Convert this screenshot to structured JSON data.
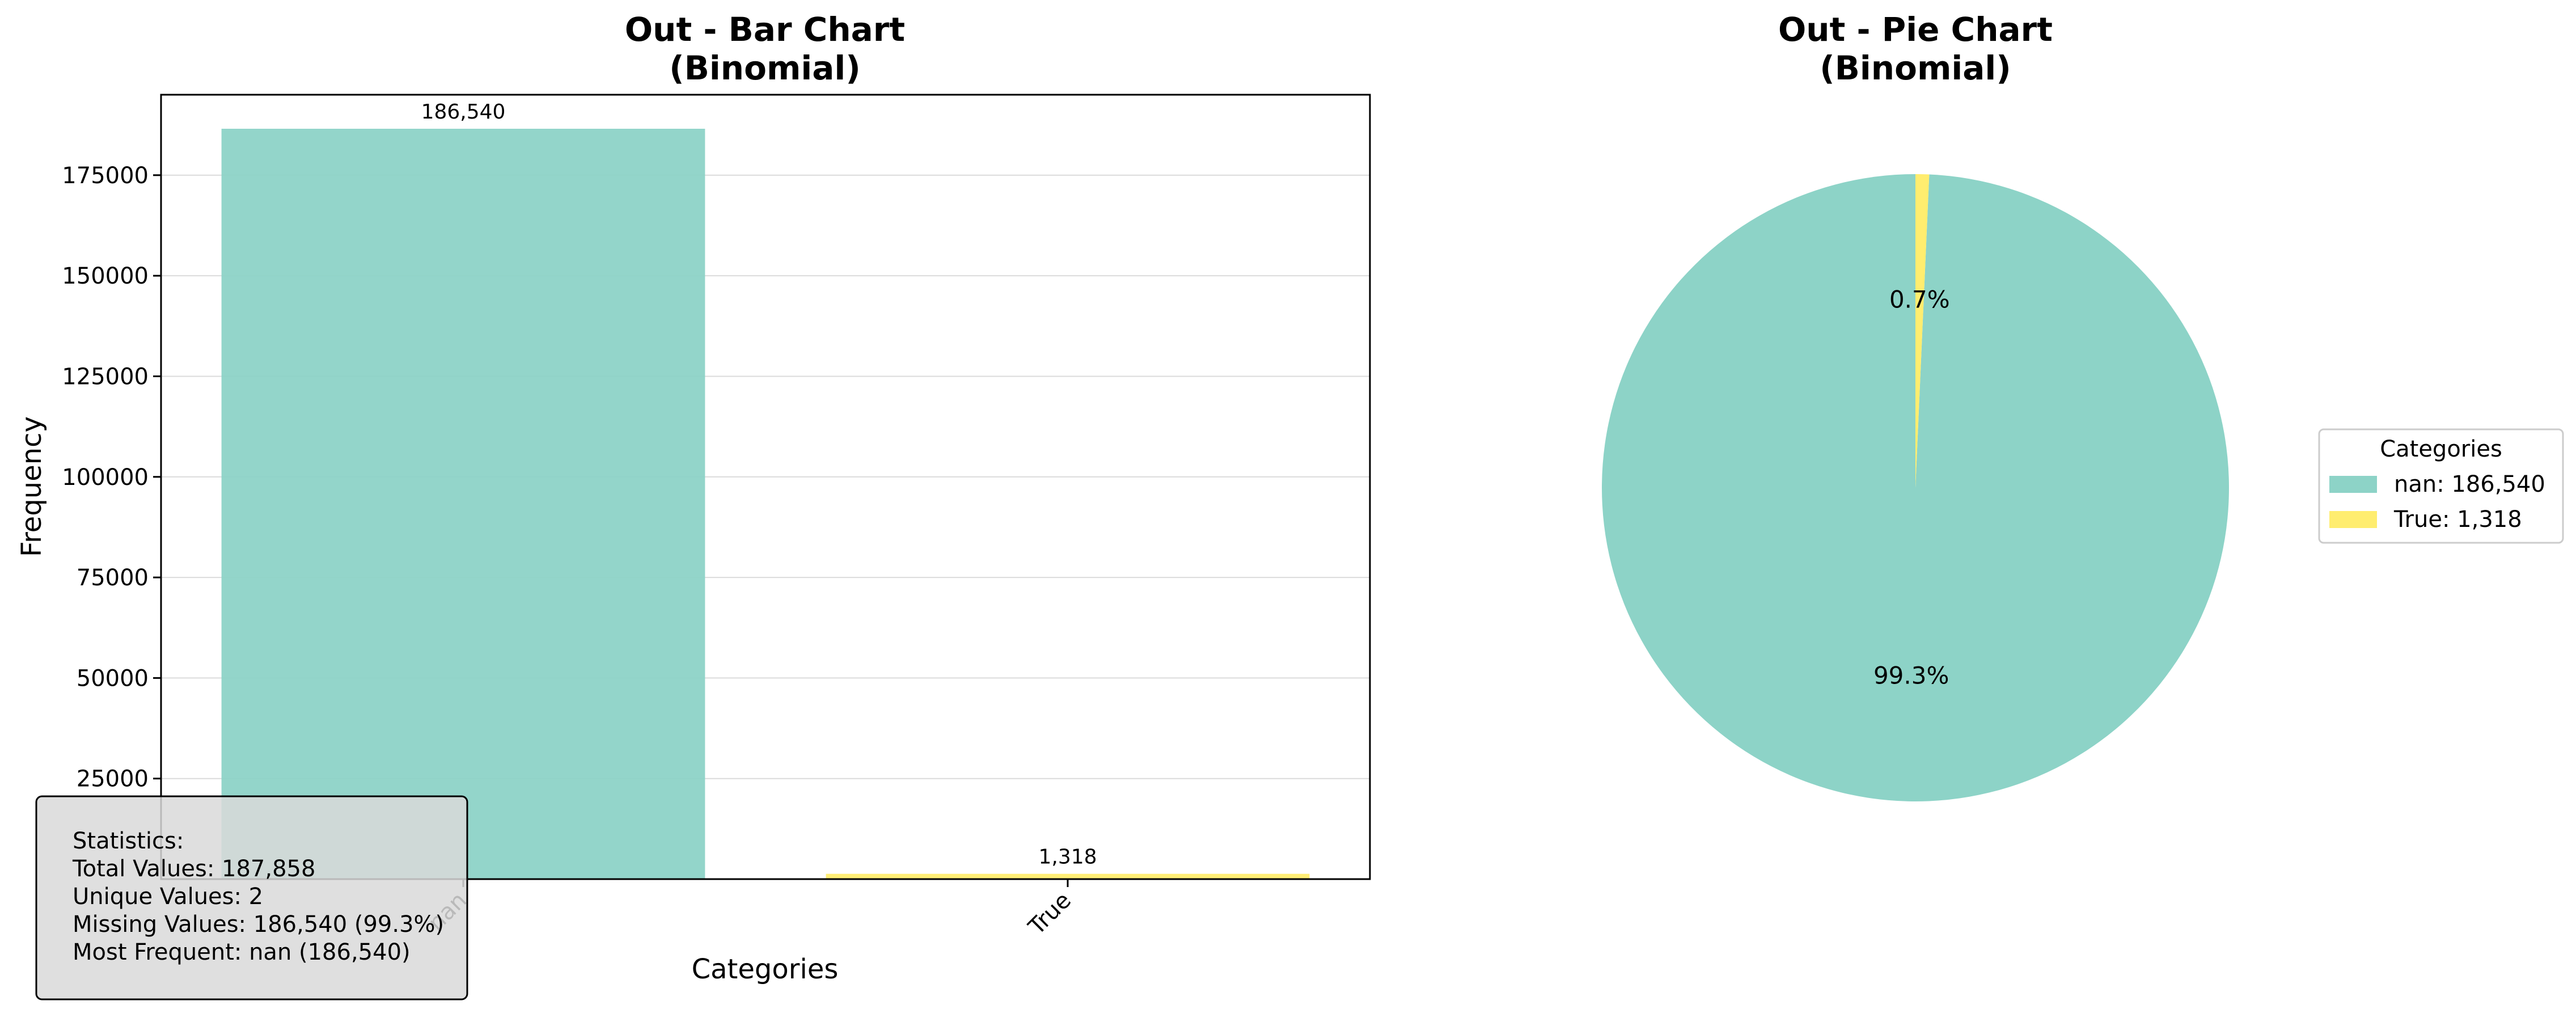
{
  "chart_data": [
    {
      "type": "bar",
      "title": [
        "Out - Bar Chart",
        "(Binomial)"
      ],
      "xlabel": "Categories",
      "ylabel": "Frequency",
      "categories": [
        "nan",
        "True"
      ],
      "values": [
        186540,
        1318
      ],
      "data_labels": [
        "186,540",
        "1,318"
      ],
      "colors": [
        "#8dd3c7",
        "#ffed6f"
      ],
      "ylim": [
        0,
        195000
      ],
      "yticks": [
        25000,
        50000,
        75000,
        100000,
        125000,
        150000,
        175000
      ],
      "ytick_labels": [
        "25000",
        "50000",
        "75000",
        "100000",
        "125000",
        "150000",
        "175000"
      ],
      "xtick_labels": [
        "nan",
        "True"
      ],
      "grid": "y",
      "stats_box": {
        "lines": [
          "Statistics:",
          "Total Values: 187,858",
          "Unique Values: 2",
          "Missing Values: 186,540 (99.3%)",
          "Most Frequent: nan (186,540)"
        ]
      }
    },
    {
      "type": "pie",
      "title": [
        "Out - Pie Chart",
        "(Binomial)"
      ],
      "labels": [
        "nan",
        "True"
      ],
      "values": [
        186540,
        1318
      ],
      "percent_labels": [
        "99.3%",
        "0.7%"
      ],
      "colors": [
        "#8dd3c7",
        "#ffed6f"
      ],
      "legend": {
        "title": "Categories",
        "entries": [
          "nan: 186,540",
          "True: 1,318"
        ],
        "placement": "right"
      }
    }
  ]
}
